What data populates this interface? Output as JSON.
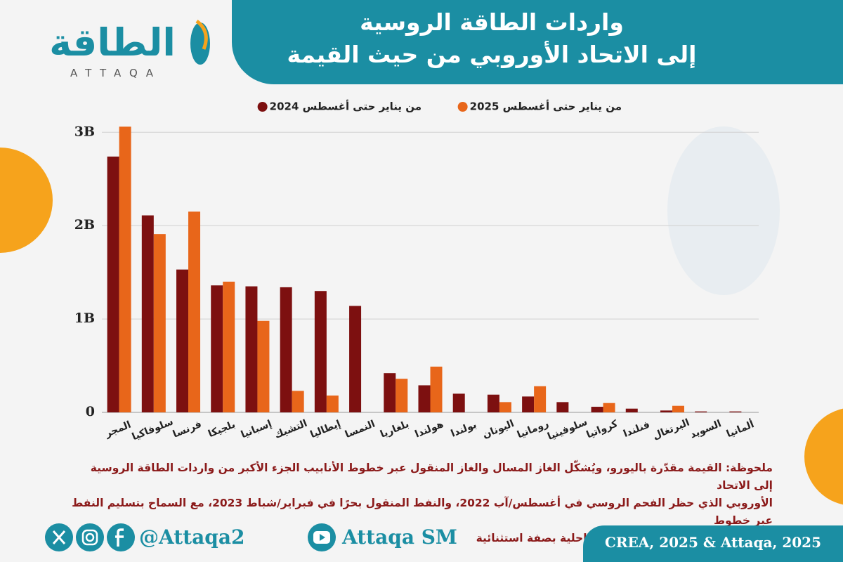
{
  "header": {
    "logo": "الطاقة",
    "logo_latin": "ATTAQA"
  },
  "chart_data": {
    "type": "bar",
    "title": [
      "واردات الطاقة الروسية",
      "إلى الاتحاد الأوروبي من حيث القيمة"
    ],
    "categories": [
      "المجر",
      "سلوفاكيا",
      "فرنسا",
      "بلجيكا",
      "إسبانيا",
      "التشيك",
      "إيطاليا",
      "النمسا",
      "بلغاريا",
      "هولندا",
      "بولندا",
      "اليونان",
      "رومانيا",
      "سلوفينيا",
      "كرواتيا",
      "فنلندا",
      "البرتغال",
      "السويد",
      "ألمانيا"
    ],
    "series": [
      {
        "name": "من يناير حتى أغسطس 2024",
        "color": "#7d1010",
        "values": [
          2.74,
          2.11,
          1.53,
          1.36,
          1.35,
          1.34,
          1.3,
          1.14,
          0.42,
          0.29,
          0.2,
          0.19,
          0.17,
          0.11,
          0.06,
          0.04,
          0.02,
          0.01,
          0.01
        ]
      },
      {
        "name": "من يناير حتى أغسطس 2025",
        "color": "#e8661a",
        "values": [
          3.06,
          1.91,
          2.15,
          1.4,
          0.98,
          0.23,
          0.18,
          0,
          0.36,
          0.49,
          0,
          0.11,
          0.28,
          0,
          0.1,
          0,
          0.07,
          0,
          0
        ]
      }
    ],
    "ylim": [
      0,
      3.1
    ],
    "yticks": [
      0,
      {
        "value": 1,
        "label": "1B"
      },
      {
        "value": 2,
        "label": "2B"
      },
      {
        "value": 3,
        "label": "3B"
      }
    ],
    "grid": true
  },
  "note": [
    "ملحوظة: القيمة مقدّرة باليورو، ويُشكّل الغاز المسال والغاز المنقول عبر خطوط الأنابيب الجزء الأكبر من واردات الطاقة الروسية إلى الاتحاد",
    "الأوروبي الذي حظر الفحم الروسي في أغسطس/آب 2022، والنفط المنقول بحرًا في فبراير/شباط 2023، مع السماح بتسليم النفط عبر خطوط",
    "الأنابيب إلى الدول الأعضاء غير الساحلية بصفة استثنائية"
  ],
  "footer": {
    "handle": "@Attaqa2",
    "youtube": "Attaqa SM",
    "source": "CREA, 2025 & Attaqa, 2025"
  }
}
